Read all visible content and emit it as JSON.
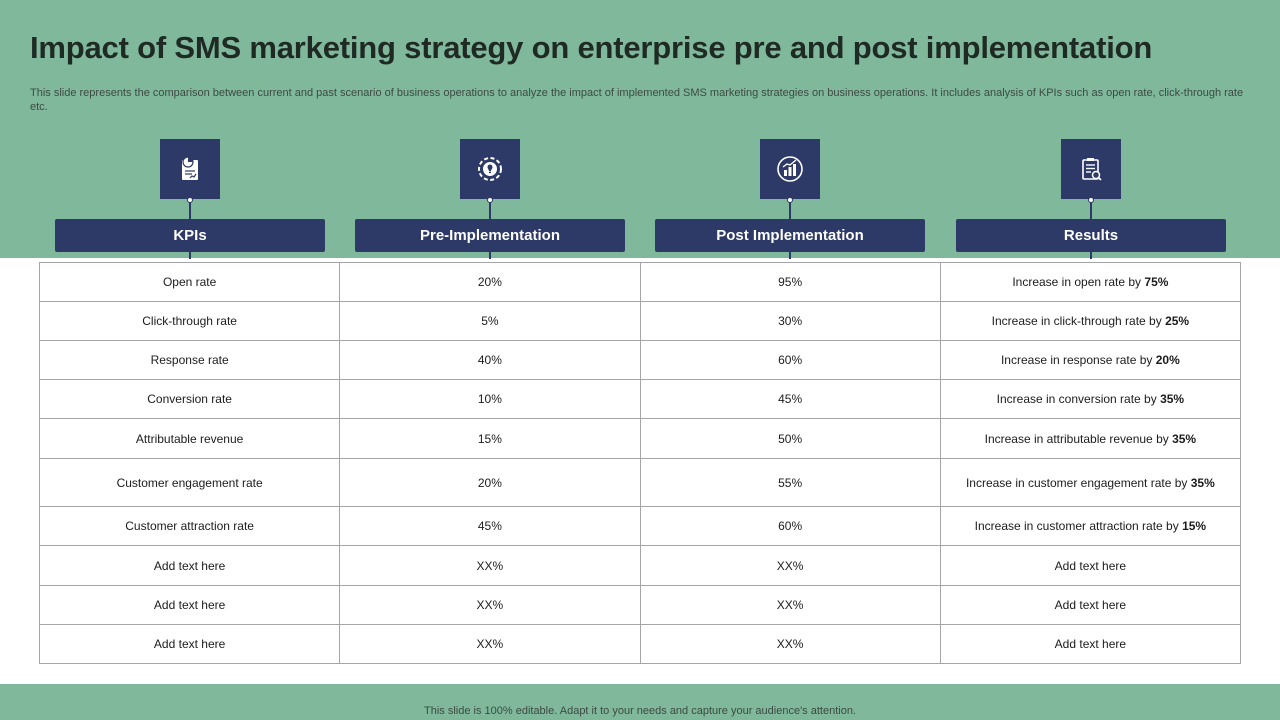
{
  "title": "Impact of SMS marketing strategy on enterprise pre and post  implementation",
  "subtitle": "This slide represents the comparison between current and past scenario of business operations to analyze the impact of implemented SMS marketing strategies on business operations. It includes analysis of KPIs such as open rate, click-through rate etc.",
  "columns": [
    {
      "label": "KPIs",
      "icon": "report-document-icon"
    },
    {
      "label": "Pre-Implementation",
      "icon": "lightbulb-gear-icon"
    },
    {
      "label": "Post Implementation",
      "icon": "growth-chart-icon"
    },
    {
      "label": "Results",
      "icon": "checklist-magnifier-icon"
    }
  ],
  "rows": [
    {
      "kpi": "Open rate",
      "pre": "20%",
      "post": "95%",
      "result_text": "Increase in open rate by ",
      "result_value": "75%"
    },
    {
      "kpi": "Click-through rate",
      "pre": "5%",
      "post": "30%",
      "result_text": "Increase in click-through rate by ",
      "result_value": "25%"
    },
    {
      "kpi": "Response rate",
      "pre": "40%",
      "post": "60%",
      "result_text": "Increase in response rate by ",
      "result_value": "20%"
    },
    {
      "kpi": "Conversion  rate",
      "pre": "10%",
      "post": "45%",
      "result_text": "Increase in conversion  rate by ",
      "result_value": "35%"
    },
    {
      "kpi": "Attributable revenue",
      "pre": "15%",
      "post": "50%",
      "result_text": "Increase in attributable revenue  by ",
      "result_value": "35%"
    },
    {
      "kpi": "Customer engagement rate",
      "pre": "20%",
      "post": "55%",
      "result_text": "Increase in customer engagement rate by ",
      "result_value": "35%"
    },
    {
      "kpi": "Customer attraction rate",
      "pre": "45%",
      "post": "60%",
      "result_text": "Increase in customer attraction rate by ",
      "result_value": "15%"
    },
    {
      "kpi": "Add text here",
      "pre": "XX%",
      "post": "XX%",
      "result_text": "Add text here",
      "result_value": ""
    },
    {
      "kpi": "Add text here",
      "pre": "XX%",
      "post": "XX%",
      "result_text": "Add text here",
      "result_value": ""
    },
    {
      "kpi": "Add text here",
      "pre": "XX%",
      "post": "XX%",
      "result_text": "Add text here",
      "result_value": ""
    }
  ],
  "footer": "This slide is 100% editable. Adapt it to your needs and capture your audience's attention.",
  "colors": {
    "band": "#7fb89b",
    "navy": "#2d3966",
    "border": "#a5a5a5"
  }
}
